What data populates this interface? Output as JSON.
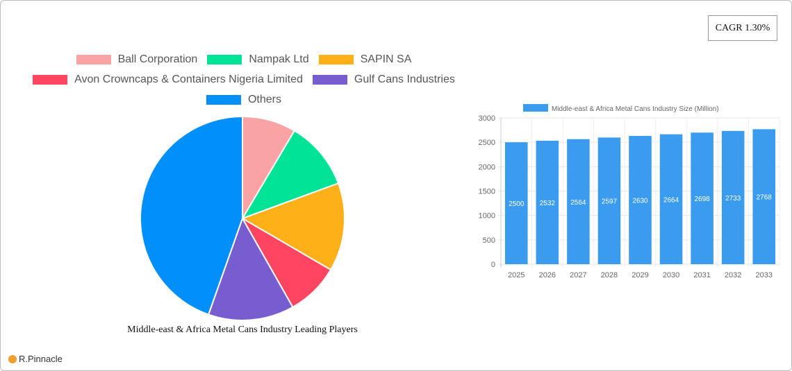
{
  "cagr": "CAGR 1.30%",
  "logo_text": "R.Pinnacle",
  "chart_data": [
    {
      "type": "pie",
      "title": "Middle-east & Africa Metal Cans Industry Leading Players",
      "legend": "top",
      "slices": [
        {
          "name": "Ball Corporation",
          "value": 8.5,
          "color": "#f9a3a4"
        },
        {
          "name": "Nampak Ltd",
          "value": 10.9,
          "color": "#00e396"
        },
        {
          "name": "SAPIN SA",
          "value": 14.0,
          "color": "#feb019"
        },
        {
          "name": "Avon Crowncaps & Containers Nigeria Limited",
          "value": 8.4,
          "color": "#ff4560"
        },
        {
          "name": "Gulf Cans Industries",
          "value": 13.6,
          "color": "#775dd0"
        },
        {
          "name": "Others",
          "value": 44.6,
          "color": "#008ffb"
        }
      ]
    },
    {
      "type": "bar",
      "legend": "top",
      "series_name": "Middle-east & Africa Metal Cans Industry Size (Million)",
      "color": "#3a9bef",
      "categories": [
        "2025",
        "2026",
        "2027",
        "2028",
        "2029",
        "2030",
        "2031",
        "2032",
        "2033"
      ],
      "values": [
        2500,
        2532,
        2564,
        2597,
        2630,
        2664,
        2698,
        2733,
        2768
      ],
      "ylim": [
        0,
        3000
      ],
      "yticks": [
        0,
        500,
        1000,
        1500,
        2000,
        2500,
        3000
      ],
      "grid": true
    }
  ]
}
